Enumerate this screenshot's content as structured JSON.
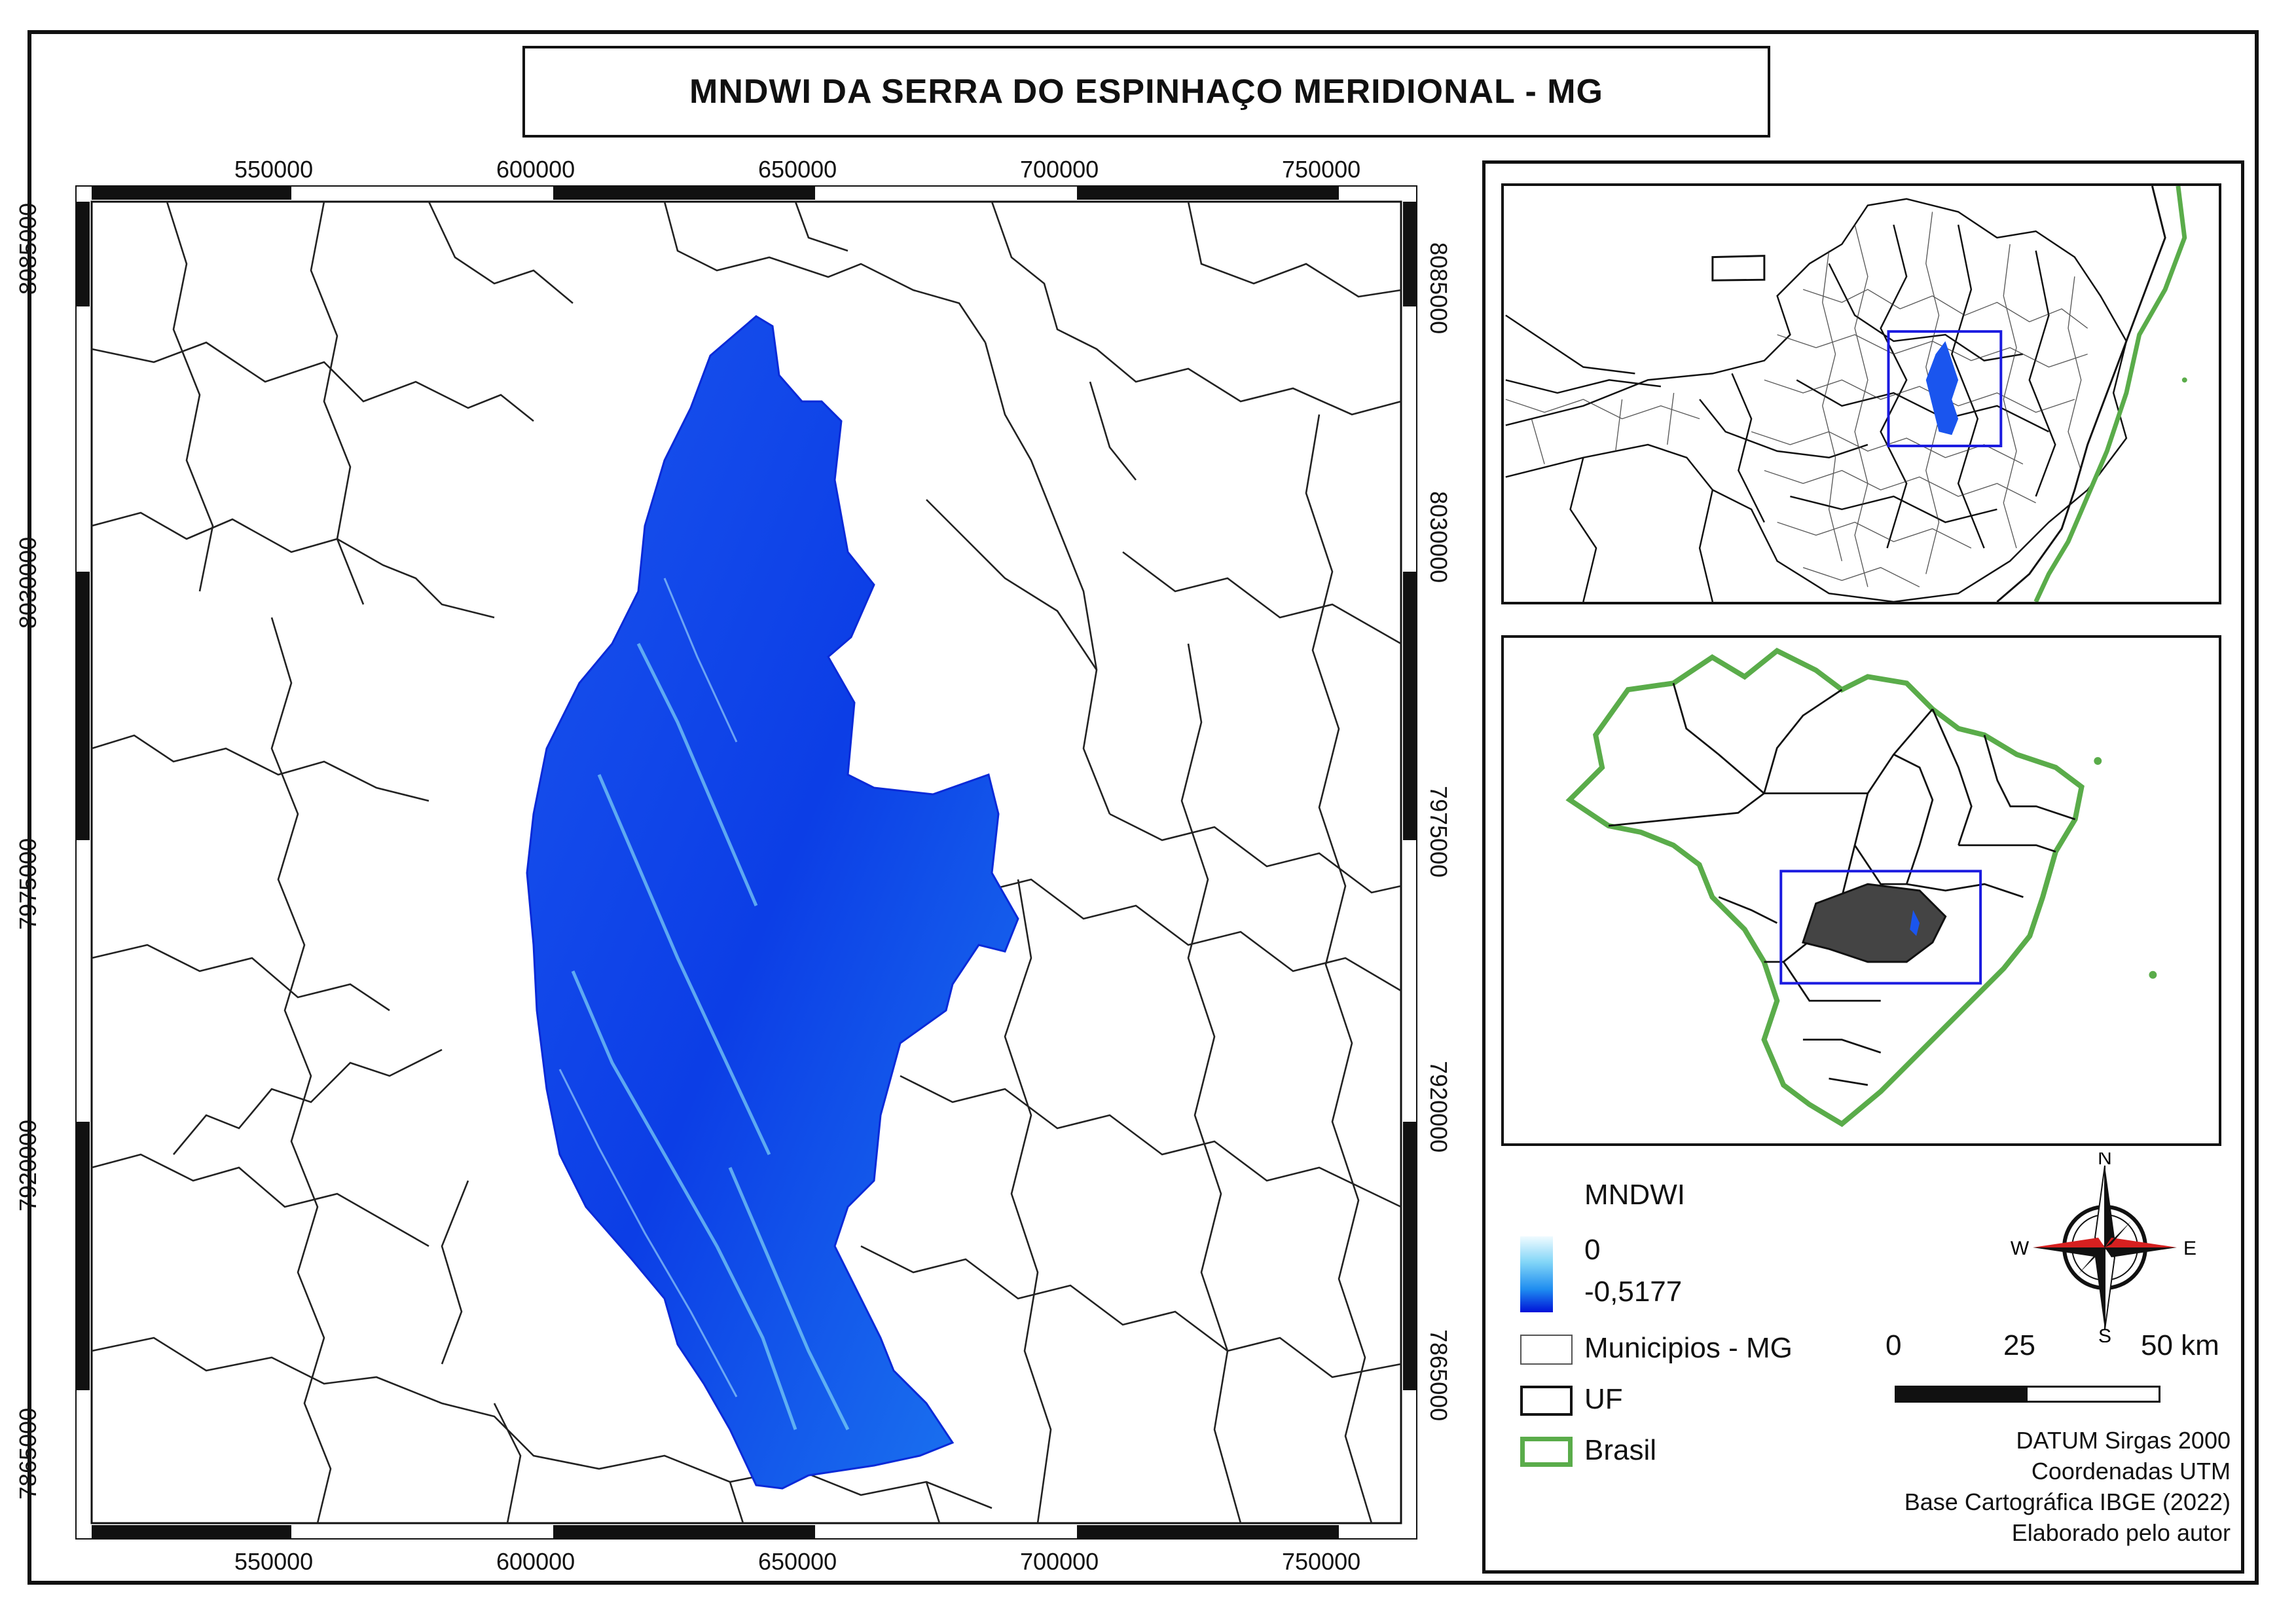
{
  "title": "MNDWI DA SERRA DO ESPINHAÇO MERIDIONAL -  MG",
  "grid": {
    "x_labels": [
      "550000",
      "600000",
      "650000",
      "700000",
      "750000"
    ],
    "y_labels": [
      "8085000",
      "8030000",
      "7975000",
      "7920000",
      "7865000"
    ]
  },
  "legend": {
    "title": "MNDWI",
    "ramp_max": "0",
    "ramp_min": "-0,5177",
    "items": [
      {
        "label": "Municipios - MG",
        "color": "#555555"
      },
      {
        "label": "UF",
        "color": "#111111"
      },
      {
        "label": "Brasil",
        "color": "#5aac4a"
      }
    ]
  },
  "colors": {
    "mndwi_low": "#0012d8",
    "mndwi_mid": "#1e8cf0",
    "mndwi_high": "#f0fbff",
    "brasil_outline": "#5aac4a",
    "inset_extent": "#1a1ae0",
    "compass_red": "#d62020"
  },
  "north_arrow": {
    "n": "N",
    "s": "S",
    "e": "E",
    "w": "W",
    "icon": "compass-rose-icon"
  },
  "scale_bar": {
    "labels": [
      "0",
      "25",
      "50 km"
    ]
  },
  "credits": [
    "DATUM Sirgas 2000",
    "Coordenadas UTM",
    "Base Cartográfica IBGE (2022)",
    "Elaborado pelo autor"
  ]
}
